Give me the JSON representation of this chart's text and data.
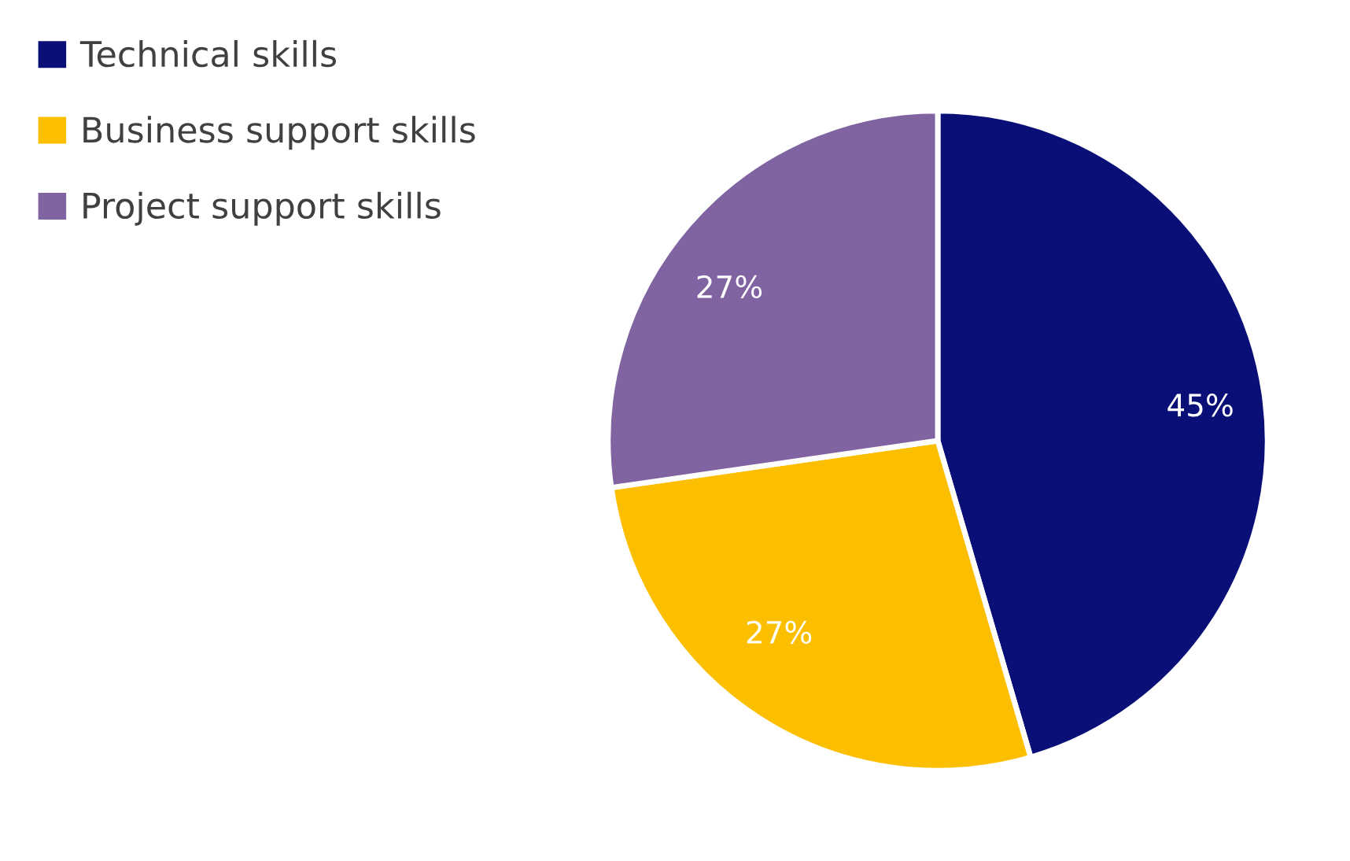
{
  "chart_data": {
    "type": "pie",
    "categories": [
      "Technical skills",
      "Business support skills",
      "Project support skills"
    ],
    "values": [
      45,
      27,
      27
    ],
    "colors": [
      "#0a0f78",
      "#fcbf00",
      "#8064a2"
    ],
    "value_labels": [
      "45%",
      "27%",
      "27%"
    ],
    "legend": "top left"
  }
}
